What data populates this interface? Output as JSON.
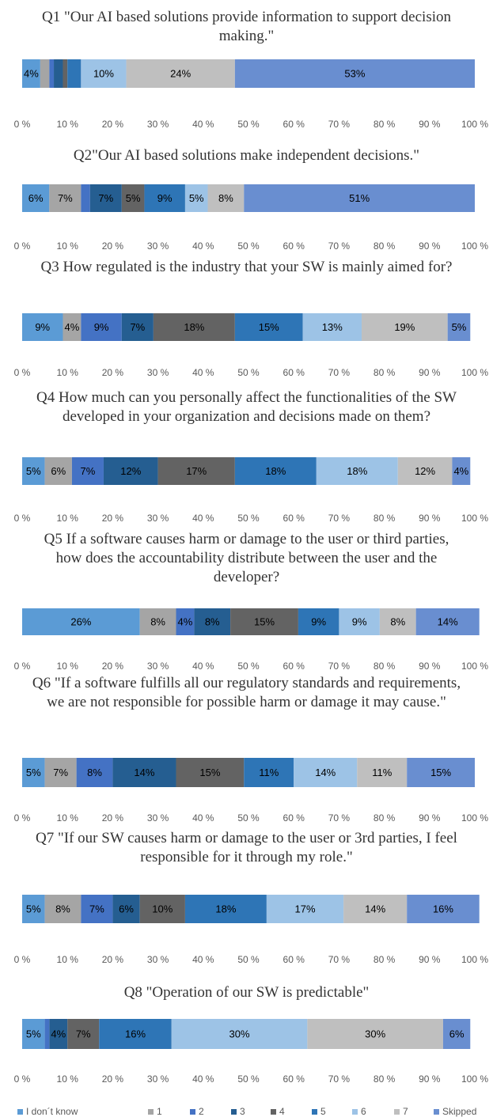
{
  "legend": [
    {
      "name": "I don´t know",
      "color": "#5b9bd5"
    },
    {
      "name": "1",
      "color": "#a5a5a5"
    },
    {
      "name": "2",
      "color": "#4472c4"
    },
    {
      "name": "3",
      "color": "#255e91"
    },
    {
      "name": "4",
      "color": "#636363"
    },
    {
      "name": "5",
      "color": "#2e75b6"
    },
    {
      "name": "6",
      "color": "#9dc3e6"
    },
    {
      "name": "7",
      "color": "#bfbfbf"
    },
    {
      "name": "Skipped",
      "color": "#698ed0"
    }
  ],
  "chart_data": [
    {
      "type": "bar",
      "title": "Q1 \"Our AI based solutions provide information to support decision making.\"",
      "values": [
        4,
        2,
        1,
        2,
        1,
        3,
        10,
        24,
        53
      ],
      "value_labels": [
        "4%",
        null,
        null,
        null,
        null,
        null,
        "10%",
        "24%",
        "53%"
      ],
      "xlim": [
        0,
        100
      ],
      "xticks": [
        {
          "value": 0,
          "label": "0 %"
        },
        {
          "value": 10,
          "label": "10 %"
        },
        {
          "value": 20,
          "label": "20 %"
        },
        {
          "value": 30,
          "label": "30 %"
        },
        {
          "value": 40,
          "label": "40 %"
        },
        {
          "value": 50,
          "label": "50 %"
        },
        {
          "value": 60,
          "label": "60 %"
        },
        {
          "value": 70,
          "label": "70 %"
        },
        {
          "value": 80,
          "label": "80 %"
        },
        {
          "value": 90,
          "label": "90 %"
        },
        {
          "value": 100,
          "label": "100 %"
        }
      ]
    },
    {
      "type": "bar",
      "title": "Q2\"Our AI based solutions make independent decisions.\"",
      "values": [
        6,
        7,
        2,
        7,
        5,
        9,
        5,
        8,
        51
      ],
      "value_labels": [
        "6%",
        "7%",
        null,
        "7%",
        "5%",
        "9%",
        "5%",
        "8%",
        "51%"
      ],
      "xlim": [
        0,
        100
      ],
      "xticks": [
        {
          "value": 0,
          "label": "0 %"
        },
        {
          "value": 10,
          "label": "10 %"
        },
        {
          "value": 20,
          "label": "20 %"
        },
        {
          "value": 30,
          "label": "30 %"
        },
        {
          "value": 40,
          "label": "40 %"
        },
        {
          "value": 50,
          "label": "50 %"
        },
        {
          "value": 60,
          "label": "60 %"
        },
        {
          "value": 70,
          "label": "70 %"
        },
        {
          "value": 80,
          "label": "80 %"
        },
        {
          "value": 90,
          "label": "90 %"
        },
        {
          "value": 100,
          "label": "100 %"
        }
      ]
    },
    {
      "type": "bar",
      "title": "Q3 How regulated is the industry that your SW is mainly aimed for?",
      "values": [
        9,
        4,
        9,
        7,
        18,
        15,
        13,
        19,
        5
      ],
      "value_labels": [
        "9%",
        "4%",
        "9%",
        "7%",
        "18%",
        "15%",
        "13%",
        "19%",
        "5%"
      ],
      "xlim": [
        0,
        100
      ],
      "xticks": [
        {
          "value": 0,
          "label": "0 %"
        },
        {
          "value": 10,
          "label": "10 %"
        },
        {
          "value": 20,
          "label": "20 %"
        },
        {
          "value": 30,
          "label": "30 %"
        },
        {
          "value": 40,
          "label": "40 %"
        },
        {
          "value": 50,
          "label": "50 %"
        },
        {
          "value": 60,
          "label": "60 %"
        },
        {
          "value": 70,
          "label": "70 %"
        },
        {
          "value": 80,
          "label": "80 %"
        },
        {
          "value": 90,
          "label": "90 %"
        },
        {
          "value": 100,
          "label": "100 %"
        }
      ]
    },
    {
      "type": "bar",
      "title": "Q4 How much can you personally affect the functionalities of the SW developed in your organization and decisions made on them?",
      "values": [
        5,
        6,
        7,
        12,
        17,
        18,
        18,
        12,
        4
      ],
      "value_labels": [
        "5%",
        "6%",
        "7%",
        "12%",
        "17%",
        "18%",
        "18%",
        "12%",
        "4%"
      ],
      "xlim": [
        0,
        100
      ],
      "xticks": [
        {
          "value": 0,
          "label": "0 %"
        },
        {
          "value": 10,
          "label": "10 %"
        },
        {
          "value": 20,
          "label": "20 %"
        },
        {
          "value": 30,
          "label": "30 %"
        },
        {
          "value": 40,
          "label": "40 %"
        },
        {
          "value": 50,
          "label": "50 %"
        },
        {
          "value": 60,
          "label": "60 %"
        },
        {
          "value": 70,
          "label": "70 %"
        },
        {
          "value": 80,
          "label": "80 %"
        },
        {
          "value": 90,
          "label": "90 %"
        },
        {
          "value": 100,
          "label": "100 %"
        }
      ]
    },
    {
      "type": "bar",
      "title": "Q5 If a software causes harm or damage to the user or third parties, how does the accountability distribute between the user and the developer?",
      "values": [
        26,
        8,
        4,
        8,
        15,
        9,
        9,
        8,
        14
      ],
      "value_labels": [
        "26%",
        "8%",
        "4%",
        "8%",
        "15%",
        "9%",
        "9%",
        "8%",
        "14%"
      ],
      "xlim": [
        0,
        100
      ],
      "xticks": [
        {
          "value": 0,
          "label": "0 %"
        },
        {
          "value": 10,
          "label": "10 %"
        },
        {
          "value": 20,
          "label": "20 %"
        },
        {
          "value": 30,
          "label": "30 %"
        },
        {
          "value": 40,
          "label": "40 %"
        },
        {
          "value": 50,
          "label": "50 %"
        },
        {
          "value": 60,
          "label": "60 %"
        },
        {
          "value": 70,
          "label": "70 %"
        },
        {
          "value": 80,
          "label": "80 %"
        },
        {
          "value": 90,
          "label": "90 %"
        },
        {
          "value": 100,
          "label": "100 %"
        }
      ]
    },
    {
      "type": "bar",
      "title": "Q6 \"If a software fulfills all our regulatory standards and requirements, we are not responsible for possible harm or damage it may cause.\"",
      "values": [
        5,
        7,
        8,
        14,
        15,
        11,
        14,
        11,
        15
      ],
      "value_labels": [
        "5%",
        "7%",
        "8%",
        "14%",
        "15%",
        "11%",
        "14%",
        "11%",
        "15%"
      ],
      "xlim": [
        0,
        100
      ],
      "xticks": [
        {
          "value": 0,
          "label": "0 %"
        },
        {
          "value": 10,
          "label": "10 %"
        },
        {
          "value": 20,
          "label": "20 %"
        },
        {
          "value": 30,
          "label": "30 %"
        },
        {
          "value": 40,
          "label": "40 %"
        },
        {
          "value": 50,
          "label": "50 %"
        },
        {
          "value": 60,
          "label": "60 %"
        },
        {
          "value": 70,
          "label": "70 %"
        },
        {
          "value": 80,
          "label": "80 %"
        },
        {
          "value": 90,
          "label": "90 %"
        },
        {
          "value": 100,
          "label": "100 %"
        }
      ]
    },
    {
      "type": "bar",
      "title": "Q7 \"If our SW causes harm or damage to the user or 3rd parties, I feel responsible for it through my role.\"",
      "values": [
        5,
        8,
        7,
        6,
        10,
        18,
        17,
        14,
        16
      ],
      "value_labels": [
        "5%",
        "8%",
        "7%",
        "6%",
        "10%",
        "18%",
        "17%",
        "14%",
        "16%"
      ],
      "xlim": [
        0,
        100
      ],
      "xticks": [
        {
          "value": 0,
          "label": "0 %"
        },
        {
          "value": 10,
          "label": "10 %"
        },
        {
          "value": 20,
          "label": "20 %"
        },
        {
          "value": 30,
          "label": "30 %"
        },
        {
          "value": 40,
          "label": "40 %"
        },
        {
          "value": 50,
          "label": "50 %"
        },
        {
          "value": 60,
          "label": "60 %"
        },
        {
          "value": 70,
          "label": "70 %"
        },
        {
          "value": 80,
          "label": "80 %"
        },
        {
          "value": 90,
          "label": "90 %"
        },
        {
          "value": 100,
          "label": "100 %"
        }
      ]
    },
    {
      "type": "bar",
      "title": "Q8 \"Operation of our SW is predictable\"",
      "values": [
        5,
        0,
        1,
        4,
        7,
        16,
        30,
        30,
        6
      ],
      "value_labels": [
        "5%",
        null,
        null,
        "4%",
        "7%",
        "16%",
        "30%",
        "30%",
        "6%"
      ],
      "xlim": [
        0,
        100
      ],
      "xticks": [
        {
          "value": 0,
          "label": "0 %"
        },
        {
          "value": 10,
          "label": "10 %"
        },
        {
          "value": 20,
          "label": "20 %"
        },
        {
          "value": 30,
          "label": "30 %"
        },
        {
          "value": 40,
          "label": "40 %"
        },
        {
          "value": 50,
          "label": "50 %"
        },
        {
          "value": 60,
          "label": "60 %"
        },
        {
          "value": 70,
          "label": "70 %"
        },
        {
          "value": 80,
          "label": "80 %"
        },
        {
          "value": 90,
          "label": "90 %"
        },
        {
          "value": 100,
          "label": "100 %"
        }
      ]
    }
  ]
}
